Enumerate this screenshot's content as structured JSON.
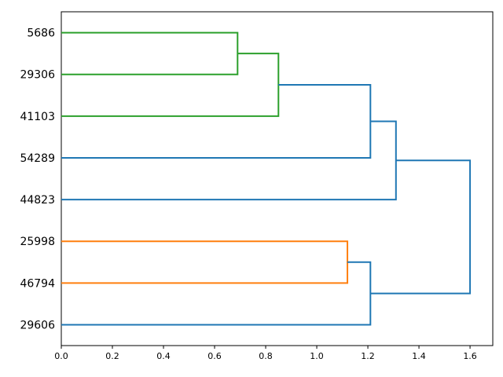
{
  "chart_data": {
    "type": "dendrogram",
    "orientation": "right",
    "title": "",
    "xlabel": "",
    "ylabel": "",
    "grid": false,
    "legend_position": "none",
    "xlim": [
      0,
      1.689
    ],
    "x_ticks": [
      0.0,
      0.2,
      0.4,
      0.6,
      0.8,
      1.0,
      1.2,
      1.4,
      1.6
    ],
    "x_tick_labels": [
      "0.0",
      "0.2",
      "0.4",
      "0.6",
      "0.8",
      "1.0",
      "1.2",
      "1.4",
      "1.6"
    ],
    "leaves": [
      "5686",
      "29306",
      "41103",
      "54289",
      "44823",
      "25998",
      "46794",
      "29606"
    ],
    "merges": [
      {
        "id": 8,
        "children": [
          0,
          1
        ],
        "distance": 0.69,
        "color_key": "green"
      },
      {
        "id": 9,
        "children": [
          8,
          2
        ],
        "distance": 0.85,
        "color_key": "green"
      },
      {
        "id": 10,
        "children": [
          9,
          3
        ],
        "distance": 1.21,
        "color_key": "blue"
      },
      {
        "id": 11,
        "children": [
          10,
          4
        ],
        "distance": 1.31,
        "color_key": "blue"
      },
      {
        "id": 12,
        "children": [
          5,
          6
        ],
        "distance": 1.12,
        "color_key": "orange"
      },
      {
        "id": 13,
        "children": [
          12,
          7
        ],
        "distance": 1.21,
        "color_key": "blue"
      },
      {
        "id": 14,
        "children": [
          11,
          13
        ],
        "distance": 1.6,
        "color_key": "blue"
      }
    ],
    "colors": {
      "blue": "#1f77b4",
      "orange": "#ff7f0e",
      "green": "#2ca02c",
      "spine": "#000000",
      "label": "#000000"
    },
    "line_width": 2
  }
}
